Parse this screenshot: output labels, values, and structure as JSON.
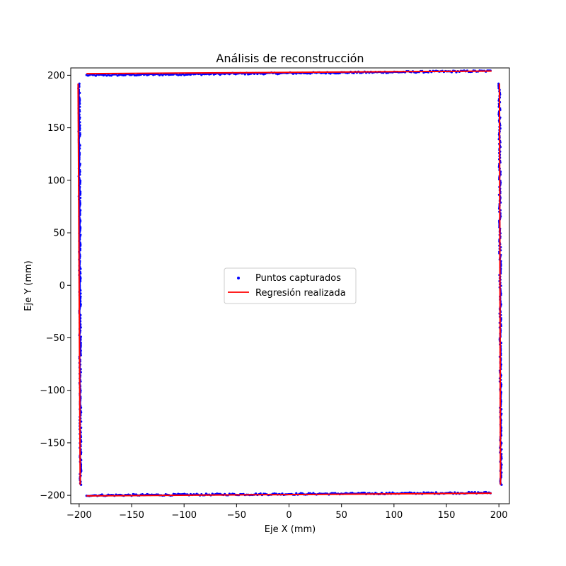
{
  "chart_data": {
    "type": "scatter",
    "title": "Análisis de reconstrucción",
    "xlabel": "Eje X (mm)",
    "ylabel": "Eje Y (mm)",
    "xlim": [
      -208,
      210
    ],
    "ylim": [
      -208,
      207
    ],
    "xticks": [
      -200,
      -150,
      -100,
      -50,
      0,
      50,
      100,
      150,
      200
    ],
    "yticks": [
      -200,
      -150,
      -100,
      -50,
      0,
      50,
      100,
      150,
      200
    ],
    "grid": false,
    "legend_position": "center",
    "legend": [
      "Puntos capturados",
      "Regresión realizada"
    ],
    "colors": {
      "points": "#0000ff",
      "regression": "#ff0000"
    },
    "series": [
      {
        "name": "Puntos capturados",
        "kind": "scatter",
        "segments": [
          {
            "side": "top",
            "x": [
              -193,
              192
            ],
            "y": [
              200,
              204
            ]
          },
          {
            "side": "bottom",
            "x": [
              -193,
              192
            ],
            "y": [
              -200,
              -197.5
            ]
          },
          {
            "side": "left",
            "x": [
              -200,
              -198.5
            ],
            "y": [
              192,
              -190
            ]
          },
          {
            "side": "right",
            "x": [
              200.5,
              202
            ],
            "y": [
              192,
              -190
            ]
          }
        ]
      },
      {
        "name": "Regresión realizada",
        "kind": "line",
        "lines": [
          {
            "side": "top",
            "x": [
              -193,
              193
            ],
            "y": [
              201.5,
              204
            ]
          },
          {
            "side": "bottom",
            "x": [
              -193,
              193
            ],
            "y": [
              -200.5,
              -198
            ]
          },
          {
            "side": "left",
            "x": [
              -201,
              -199
            ],
            "y": [
              192,
              -190
            ]
          },
          {
            "side": "right",
            "x": [
              200.5,
              201.5
            ],
            "y": [
              192,
              -190
            ]
          }
        ]
      }
    ]
  }
}
